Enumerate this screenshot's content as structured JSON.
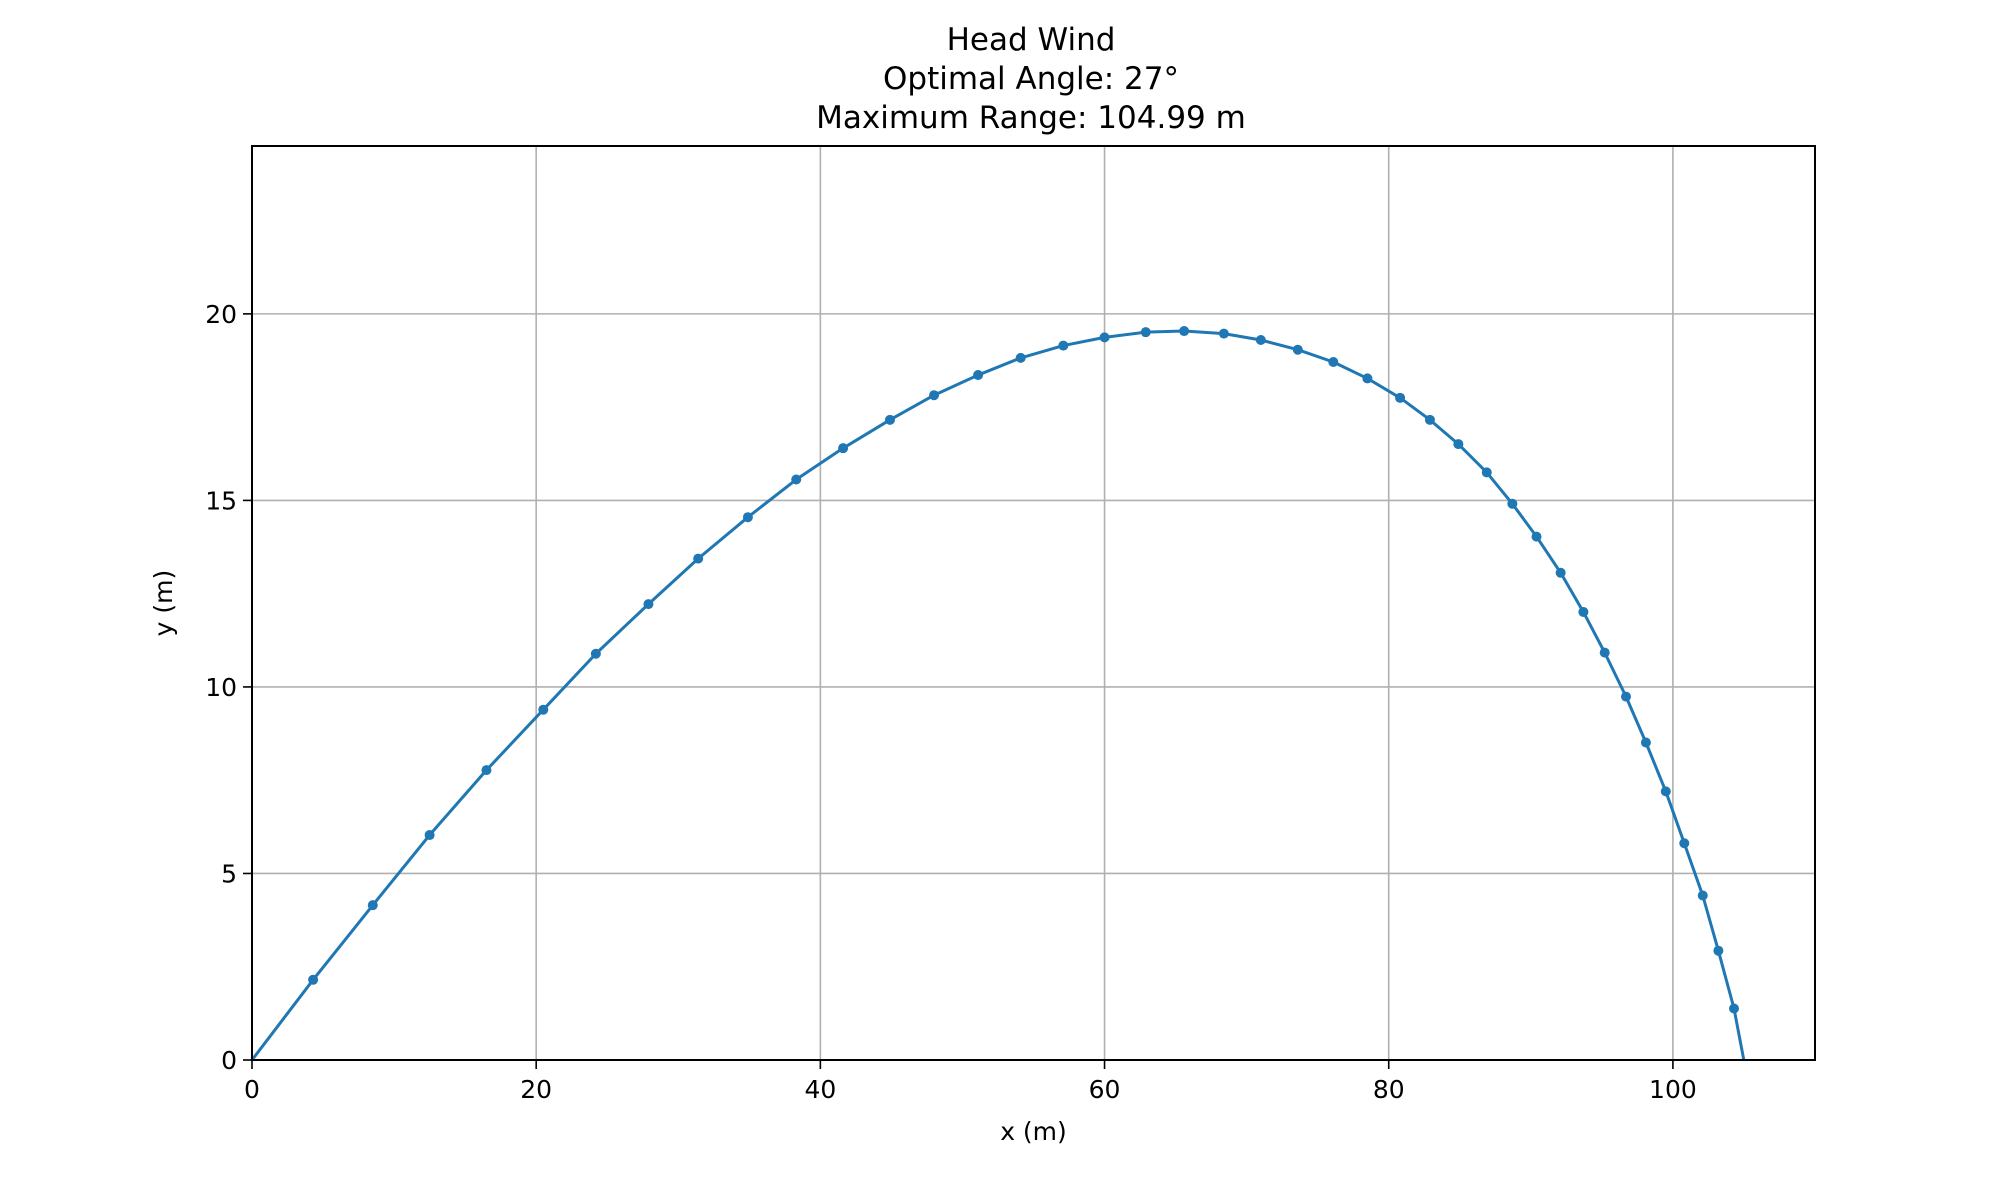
{
  "chart_data": {
    "type": "line",
    "title_lines": [
      "Head Wind",
      "Optimal Angle: 27°",
      "Maximum Range: 104.99 m"
    ],
    "xlabel": "x (m)",
    "ylabel": "y (m)",
    "xlim": [
      0,
      110
    ],
    "ylim": [
      0,
      24.5
    ],
    "xticks": [
      0,
      20,
      40,
      60,
      80,
      100
    ],
    "yticks": [
      0,
      5,
      10,
      15,
      20
    ],
    "grid": true,
    "legend": "none",
    "colors": {
      "series": "#1f77b4",
      "grid": "#b0b0b0",
      "frame": "#000000"
    },
    "series": [
      {
        "marker": "circle",
        "points": [
          [
            0.0,
            0.0
          ],
          [
            4.3,
            2.15
          ],
          [
            8.5,
            4.15
          ],
          [
            12.5,
            6.03
          ],
          [
            16.5,
            7.77
          ],
          [
            20.5,
            9.39
          ],
          [
            24.2,
            10.89
          ],
          [
            27.9,
            12.22
          ],
          [
            31.4,
            13.44
          ],
          [
            34.9,
            14.55
          ],
          [
            38.3,
            15.56
          ],
          [
            41.6,
            16.4
          ],
          [
            44.9,
            17.16
          ],
          [
            48.0,
            17.82
          ],
          [
            51.1,
            18.36
          ],
          [
            54.1,
            18.82
          ],
          [
            57.1,
            19.15
          ],
          [
            60.0,
            19.37
          ],
          [
            62.9,
            19.51
          ],
          [
            65.6,
            19.54
          ],
          [
            68.4,
            19.47
          ],
          [
            71.0,
            19.3
          ],
          [
            73.6,
            19.04
          ],
          [
            76.1,
            18.71
          ],
          [
            78.5,
            18.27
          ],
          [
            80.8,
            17.75
          ],
          [
            82.9,
            17.16
          ],
          [
            84.9,
            16.51
          ],
          [
            86.9,
            15.75
          ],
          [
            88.7,
            14.91
          ],
          [
            90.4,
            14.03
          ],
          [
            92.1,
            13.06
          ],
          [
            93.7,
            12.01
          ],
          [
            95.2,
            10.92
          ],
          [
            96.7,
            9.74
          ],
          [
            98.1,
            8.51
          ],
          [
            99.5,
            7.2
          ],
          [
            100.8,
            5.81
          ],
          [
            102.1,
            4.41
          ],
          [
            103.2,
            2.93
          ],
          [
            104.3,
            1.38
          ],
          [
            104.99,
            0.0
          ]
        ]
      }
    ]
  }
}
